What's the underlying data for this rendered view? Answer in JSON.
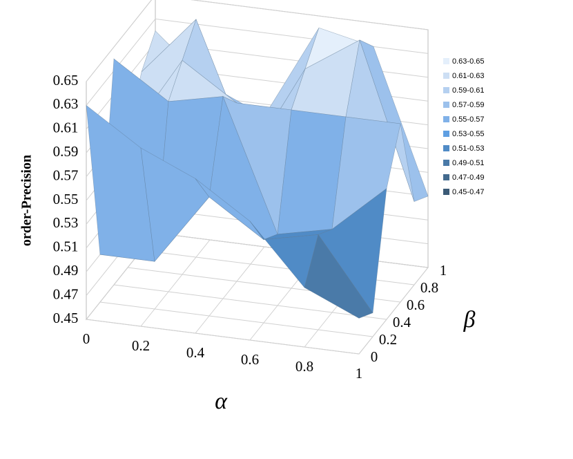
{
  "chart_data": {
    "type": "surface",
    "x_label": "α",
    "y_label": "β",
    "z_label": "order-Precision",
    "x": [
      0,
      0.2,
      0.4,
      0.6,
      0.8,
      1
    ],
    "y": [
      0,
      0.2,
      0.4,
      0.6,
      0.8,
      1
    ],
    "z": [
      [
        0.63,
        0.49,
        0.64,
        0.56,
        0.6,
        0.62
      ],
      [
        0.6,
        0.49,
        0.61,
        0.63,
        0.65,
        0.58
      ],
      [
        0.58,
        0.55,
        0.62,
        0.6,
        0.54,
        0.56
      ],
      [
        0.55,
        0.52,
        0.51,
        0.6,
        0.62,
        0.64
      ],
      [
        0.5,
        0.53,
        0.52,
        0.6,
        0.65,
        0.63
      ],
      [
        0.48,
        0.47,
        0.56,
        0.6,
        0.52,
        0.51
      ]
    ],
    "xlim": [
      0,
      1
    ],
    "ylim": [
      0,
      1
    ],
    "zlim": [
      0.45,
      0.65
    ],
    "xticks": [
      0,
      0.2,
      0.4,
      0.6,
      0.8,
      1
    ],
    "yticks": [
      0,
      0.2,
      0.4,
      0.6,
      0.8,
      1
    ],
    "zticks": [
      0.45,
      0.47,
      0.49,
      0.51,
      0.53,
      0.55,
      0.57,
      0.59,
      0.61,
      0.63,
      0.65
    ],
    "grid": true,
    "legend_position": "right",
    "bands": [
      {
        "name": "0.63-0.65",
        "range": [
          0.63,
          0.65
        ],
        "color": "#e4effb"
      },
      {
        "name": "0.61-0.63",
        "range": [
          0.61,
          0.63
        ],
        "color": "#cddff4"
      },
      {
        "name": "0.59-0.61",
        "range": [
          0.59,
          0.61
        ],
        "color": "#b5d0f0"
      },
      {
        "name": "0.57-0.59",
        "range": [
          0.57,
          0.59
        ],
        "color": "#9cc1ec"
      },
      {
        "name": "0.55-0.57",
        "range": [
          0.55,
          0.57
        ],
        "color": "#80b1e8"
      },
      {
        "name": "0.53-0.55",
        "range": [
          0.53,
          0.55
        ],
        "color": "#5f9fe2"
      },
      {
        "name": "0.51-0.53",
        "range": [
          0.51,
          0.53
        ],
        "color": "#508bc6"
      },
      {
        "name": "0.49-0.51",
        "range": [
          0.49,
          0.51
        ],
        "color": "#4a7aa8"
      },
      {
        "name": "0.47-0.49",
        "range": [
          0.47,
          0.49
        ],
        "color": "#436a8e"
      },
      {
        "name": "0.45-0.47",
        "range": [
          0.45,
          0.47
        ],
        "color": "#3b5a76"
      }
    ]
  }
}
